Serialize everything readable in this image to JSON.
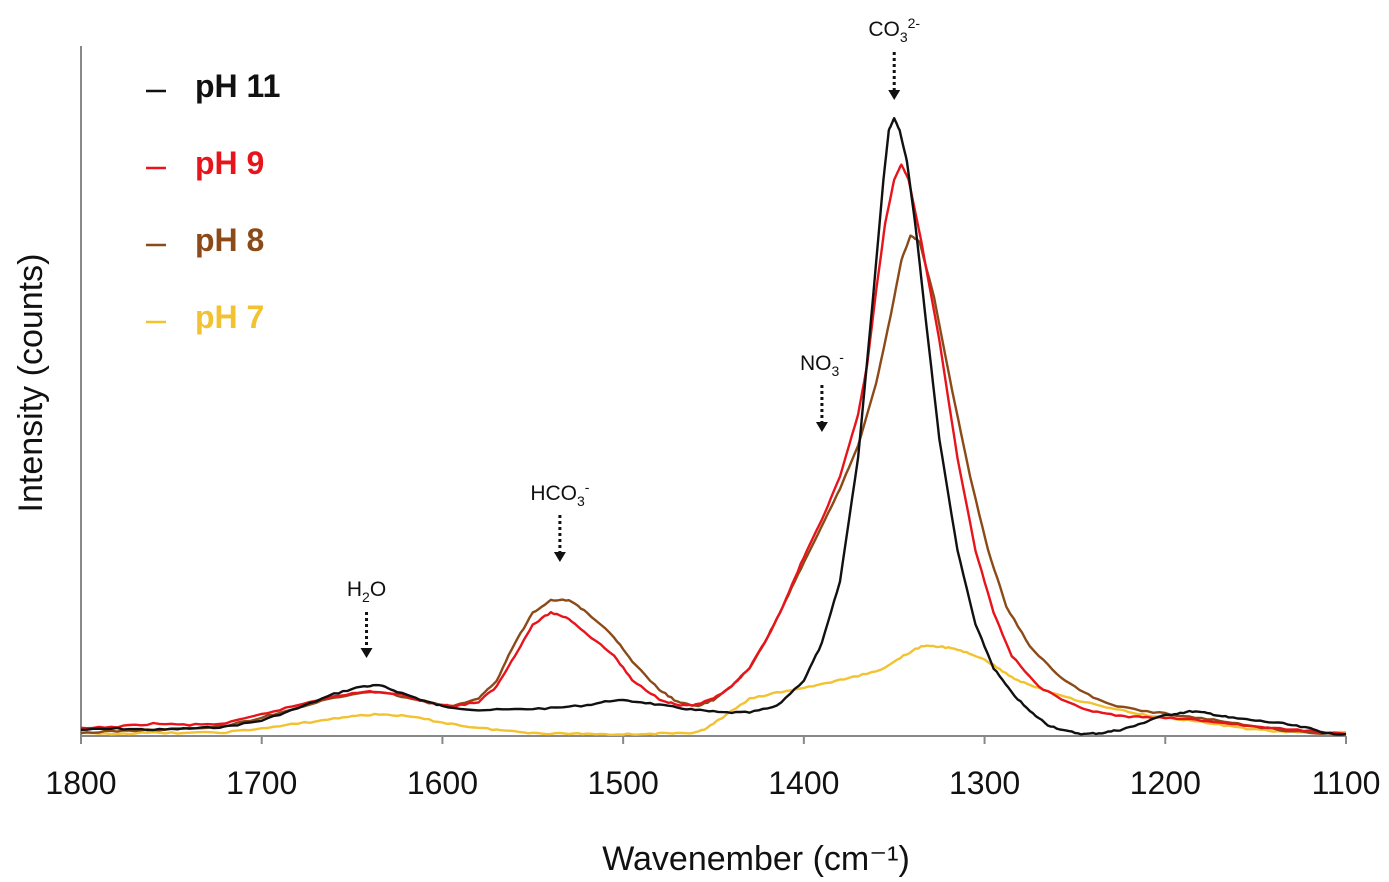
{
  "chart_data": {
    "type": "line",
    "title": "",
    "xlabel": "Wavenember (cm⁻¹)",
    "ylabel": "Intensity (counts)",
    "xlim": [
      1800,
      1100
    ],
    "x_reversed": true,
    "ylim": [
      0,
      1
    ],
    "x_ticks": [
      1800,
      1700,
      1600,
      1500,
      1400,
      1300,
      1200,
      1100
    ],
    "y_ticks_shown": false,
    "grid": false,
    "legend_position": "top-left",
    "series": [
      {
        "name": "pH 11",
        "color": "#111111",
        "points": [
          [
            1800,
            0.01
          ],
          [
            1780,
            0.012
          ],
          [
            1760,
            0.01
          ],
          [
            1740,
            0.012
          ],
          [
            1720,
            0.015
          ],
          [
            1700,
            0.025
          ],
          [
            1680,
            0.045
          ],
          [
            1660,
            0.068
          ],
          [
            1645,
            0.08
          ],
          [
            1635,
            0.082
          ],
          [
            1625,
            0.072
          ],
          [
            1610,
            0.057
          ],
          [
            1600,
            0.048
          ],
          [
            1580,
            0.042
          ],
          [
            1560,
            0.043
          ],
          [
            1540,
            0.045
          ],
          [
            1520,
            0.05
          ],
          [
            1505,
            0.058
          ],
          [
            1490,
            0.055
          ],
          [
            1475,
            0.048
          ],
          [
            1460,
            0.042
          ],
          [
            1445,
            0.038
          ],
          [
            1430,
            0.038
          ],
          [
            1415,
            0.048
          ],
          [
            1400,
            0.09
          ],
          [
            1390,
            0.15
          ],
          [
            1380,
            0.25
          ],
          [
            1370,
            0.45
          ],
          [
            1362,
            0.7
          ],
          [
            1356,
            0.9
          ],
          [
            1353,
            0.98
          ],
          [
            1350,
            1.0
          ],
          [
            1347,
            0.98
          ],
          [
            1343,
            0.93
          ],
          [
            1338,
            0.82
          ],
          [
            1332,
            0.66
          ],
          [
            1325,
            0.48
          ],
          [
            1315,
            0.3
          ],
          [
            1305,
            0.18
          ],
          [
            1295,
            0.11
          ],
          [
            1285,
            0.07
          ],
          [
            1275,
            0.04
          ],
          [
            1265,
            0.018
          ],
          [
            1255,
            0.008
          ],
          [
            1245,
            0.003
          ],
          [
            1235,
            0.005
          ],
          [
            1225,
            0.01
          ],
          [
            1215,
            0.018
          ],
          [
            1205,
            0.03
          ],
          [
            1195,
            0.036
          ],
          [
            1185,
            0.04
          ],
          [
            1175,
            0.036
          ],
          [
            1165,
            0.03
          ],
          [
            1150,
            0.025
          ],
          [
            1135,
            0.02
          ],
          [
            1120,
            0.012
          ],
          [
            1110,
            0.004
          ],
          [
            1100,
            0.003
          ]
        ]
      },
      {
        "name": "pH 9",
        "color": "#e8141c",
        "points": [
          [
            1800,
            0.012
          ],
          [
            1780,
            0.015
          ],
          [
            1760,
            0.02
          ],
          [
            1740,
            0.018
          ],
          [
            1720,
            0.02
          ],
          [
            1700,
            0.035
          ],
          [
            1680,
            0.05
          ],
          [
            1660,
            0.065
          ],
          [
            1640,
            0.072
          ],
          [
            1625,
            0.068
          ],
          [
            1610,
            0.056
          ],
          [
            1595,
            0.048
          ],
          [
            1580,
            0.055
          ],
          [
            1570,
            0.08
          ],
          [
            1560,
            0.13
          ],
          [
            1550,
            0.18
          ],
          [
            1540,
            0.2
          ],
          [
            1530,
            0.19
          ],
          [
            1520,
            0.165
          ],
          [
            1505,
            0.13
          ],
          [
            1495,
            0.09
          ],
          [
            1480,
            0.06
          ],
          [
            1470,
            0.05
          ],
          [
            1460,
            0.05
          ],
          [
            1450,
            0.06
          ],
          [
            1440,
            0.08
          ],
          [
            1430,
            0.11
          ],
          [
            1420,
            0.16
          ],
          [
            1410,
            0.22
          ],
          [
            1400,
            0.29
          ],
          [
            1390,
            0.35
          ],
          [
            1380,
            0.42
          ],
          [
            1370,
            0.52
          ],
          [
            1365,
            0.6
          ],
          [
            1360,
            0.72
          ],
          [
            1355,
            0.83
          ],
          [
            1350,
            0.9
          ],
          [
            1346,
            0.925
          ],
          [
            1342,
            0.9
          ],
          [
            1335,
            0.8
          ],
          [
            1325,
            0.64
          ],
          [
            1315,
            0.45
          ],
          [
            1305,
            0.3
          ],
          [
            1295,
            0.2
          ],
          [
            1285,
            0.13
          ],
          [
            1270,
            0.08
          ],
          [
            1255,
            0.055
          ],
          [
            1240,
            0.04
          ],
          [
            1225,
            0.032
          ],
          [
            1210,
            0.03
          ],
          [
            1190,
            0.028
          ],
          [
            1170,
            0.022
          ],
          [
            1150,
            0.015
          ],
          [
            1130,
            0.01
          ],
          [
            1110,
            0.006
          ],
          [
            1100,
            0.003
          ]
        ]
      },
      {
        "name": "pH 8",
        "color": "#8b4a17",
        "points": [
          [
            1800,
            0.005
          ],
          [
            1780,
            0.008
          ],
          [
            1760,
            0.01
          ],
          [
            1740,
            0.012
          ],
          [
            1720,
            0.016
          ],
          [
            1700,
            0.03
          ],
          [
            1680,
            0.046
          ],
          [
            1660,
            0.062
          ],
          [
            1640,
            0.072
          ],
          [
            1625,
            0.066
          ],
          [
            1610,
            0.055
          ],
          [
            1595,
            0.048
          ],
          [
            1580,
            0.06
          ],
          [
            1570,
            0.09
          ],
          [
            1560,
            0.15
          ],
          [
            1550,
            0.2
          ],
          [
            1540,
            0.22
          ],
          [
            1530,
            0.22
          ],
          [
            1520,
            0.2
          ],
          [
            1505,
            0.16
          ],
          [
            1495,
            0.12
          ],
          [
            1480,
            0.075
          ],
          [
            1470,
            0.055
          ],
          [
            1460,
            0.048
          ],
          [
            1450,
            0.058
          ],
          [
            1440,
            0.08
          ],
          [
            1430,
            0.11
          ],
          [
            1420,
            0.16
          ],
          [
            1410,
            0.22
          ],
          [
            1400,
            0.28
          ],
          [
            1390,
            0.34
          ],
          [
            1380,
            0.4
          ],
          [
            1370,
            0.47
          ],
          [
            1360,
            0.57
          ],
          [
            1352,
            0.68
          ],
          [
            1346,
            0.77
          ],
          [
            1341,
            0.81
          ],
          [
            1336,
            0.8
          ],
          [
            1328,
            0.71
          ],
          [
            1318,
            0.56
          ],
          [
            1308,
            0.42
          ],
          [
            1298,
            0.3
          ],
          [
            1288,
            0.21
          ],
          [
            1275,
            0.145
          ],
          [
            1260,
            0.1
          ],
          [
            1245,
            0.07
          ],
          [
            1230,
            0.05
          ],
          [
            1210,
            0.04
          ],
          [
            1190,
            0.032
          ],
          [
            1170,
            0.025
          ],
          [
            1150,
            0.015
          ],
          [
            1130,
            0.008
          ],
          [
            1110,
            0.004
          ],
          [
            1100,
            0.003
          ]
        ]
      },
      {
        "name": "pH 7",
        "color": "#f2c230",
        "points": [
          [
            1800,
            0.004
          ],
          [
            1780,
            0.004
          ],
          [
            1760,
            0.005
          ],
          [
            1740,
            0.005
          ],
          [
            1720,
            0.006
          ],
          [
            1700,
            0.012
          ],
          [
            1680,
            0.02
          ],
          [
            1660,
            0.028
          ],
          [
            1645,
            0.034
          ],
          [
            1630,
            0.035
          ],
          [
            1615,
            0.03
          ],
          [
            1600,
            0.022
          ],
          [
            1585,
            0.015
          ],
          [
            1570,
            0.01
          ],
          [
            1555,
            0.006
          ],
          [
            1540,
            0.004
          ],
          [
            1525,
            0.004
          ],
          [
            1510,
            0.003
          ],
          [
            1495,
            0.003
          ],
          [
            1480,
            0.004
          ],
          [
            1465,
            0.004
          ],
          [
            1455,
            0.01
          ],
          [
            1445,
            0.03
          ],
          [
            1430,
            0.06
          ],
          [
            1415,
            0.07
          ],
          [
            1400,
            0.078
          ],
          [
            1385,
            0.087
          ],
          [
            1370,
            0.097
          ],
          [
            1355,
            0.11
          ],
          [
            1345,
            0.13
          ],
          [
            1335,
            0.145
          ],
          [
            1325,
            0.145
          ],
          [
            1315,
            0.14
          ],
          [
            1305,
            0.13
          ],
          [
            1295,
            0.115
          ],
          [
            1285,
            0.095
          ],
          [
            1275,
            0.082
          ],
          [
            1260,
            0.068
          ],
          [
            1245,
            0.055
          ],
          [
            1230,
            0.045
          ],
          [
            1215,
            0.036
          ],
          [
            1200,
            0.03
          ],
          [
            1185,
            0.025
          ],
          [
            1170,
            0.018
          ],
          [
            1155,
            0.012
          ],
          [
            1140,
            0.008
          ],
          [
            1120,
            0.005
          ],
          [
            1100,
            0.006
          ]
        ]
      }
    ],
    "annotations": [
      {
        "id": "co3",
        "base": "CO",
        "sub": "3",
        "sup": "2-",
        "x": 1350,
        "y": 1.0
      },
      {
        "id": "no3",
        "base": "NO",
        "sub": "3",
        "sup": "-",
        "x": 1390,
        "y": 0.5
      },
      {
        "id": "hco3",
        "base": "HCO",
        "sub": "3",
        "sup": "-",
        "x": 1535,
        "y": 0.22
      },
      {
        "id": "h2o",
        "base": "H",
        "sub": "2",
        "sup": "",
        "tail": "O",
        "x": 1642,
        "y": 0.082
      }
    ]
  }
}
